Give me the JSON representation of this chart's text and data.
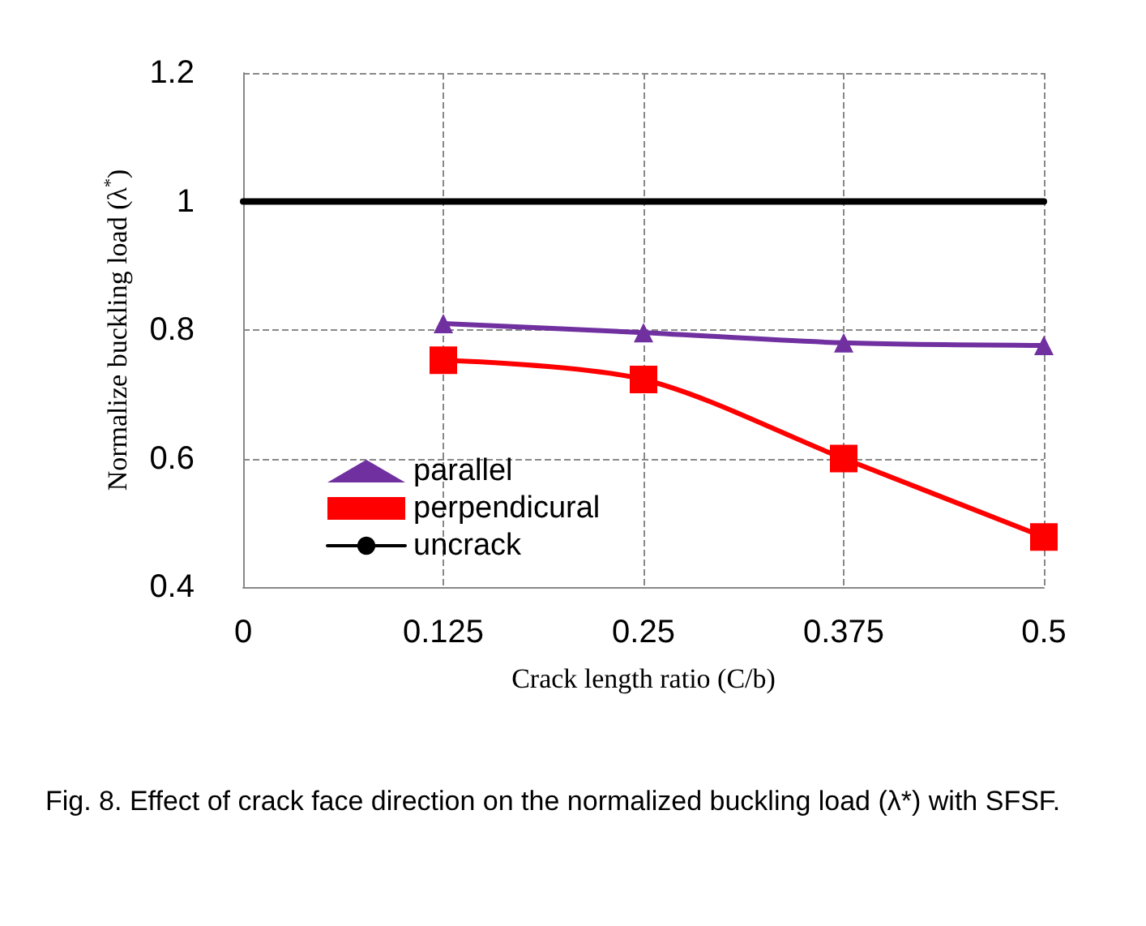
{
  "chart_data": {
    "type": "line",
    "xlabel": "Crack length ratio (C/b)",
    "ylabel": "Normalize buckling load (λ$^{*}$)",
    "xlim": [
      0,
      0.5
    ],
    "xticks": [
      0,
      0.125,
      0.25,
      0.375,
      0.5
    ],
    "ylim": [
      0.4,
      1.2
    ],
    "yticks": [
      0.4,
      0.6,
      0.8,
      1,
      1.2
    ],
    "grid": true,
    "legend": "bottom left",
    "series": [
      {
        "name": "parallel",
        "color": "#7030a0",
        "marker": "triangle",
        "x": [
          0.125,
          0.25,
          0.375,
          0.5
        ],
        "values": [
          0.81,
          0.796,
          0.78,
          0.776
        ]
      },
      {
        "name": "perpendicural",
        "color": "#ff0000",
        "marker": "square",
        "x": [
          0.125,
          0.25,
          0.375,
          0.5
        ],
        "values": [
          0.753,
          0.723,
          0.6,
          0.478
        ]
      },
      {
        "name": "uncrack",
        "color": "#000000",
        "marker": "none",
        "x": [
          0,
          0.5
        ],
        "values": [
          1,
          1
        ]
      }
    ],
    "annotations": [
      "Fig. 8. Effect of crack face direction on the normalized buckling load (λ*) with SFSF."
    ]
  }
}
